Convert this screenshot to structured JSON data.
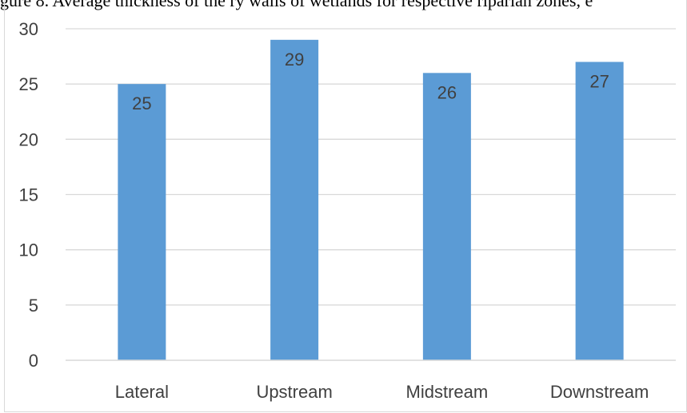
{
  "caption_fragment": "gure 8. Average thickness of the ry walls of wetlands for respective riparian zones, e",
  "chart_data": {
    "type": "bar",
    "categories": [
      "Lateral",
      "Upstream",
      "Midstream",
      "Downstream"
    ],
    "values": [
      25,
      29,
      26,
      27
    ],
    "title": "",
    "xlabel": "",
    "ylabel": "",
    "ylim": [
      0,
      30
    ],
    "yticks": [
      0,
      5,
      10,
      15,
      20,
      25,
      30
    ],
    "grid": true,
    "legend": "none",
    "bar_color": "#5b9bd5",
    "grid_color": "#d9d9d9",
    "text_color": "#404040"
  }
}
